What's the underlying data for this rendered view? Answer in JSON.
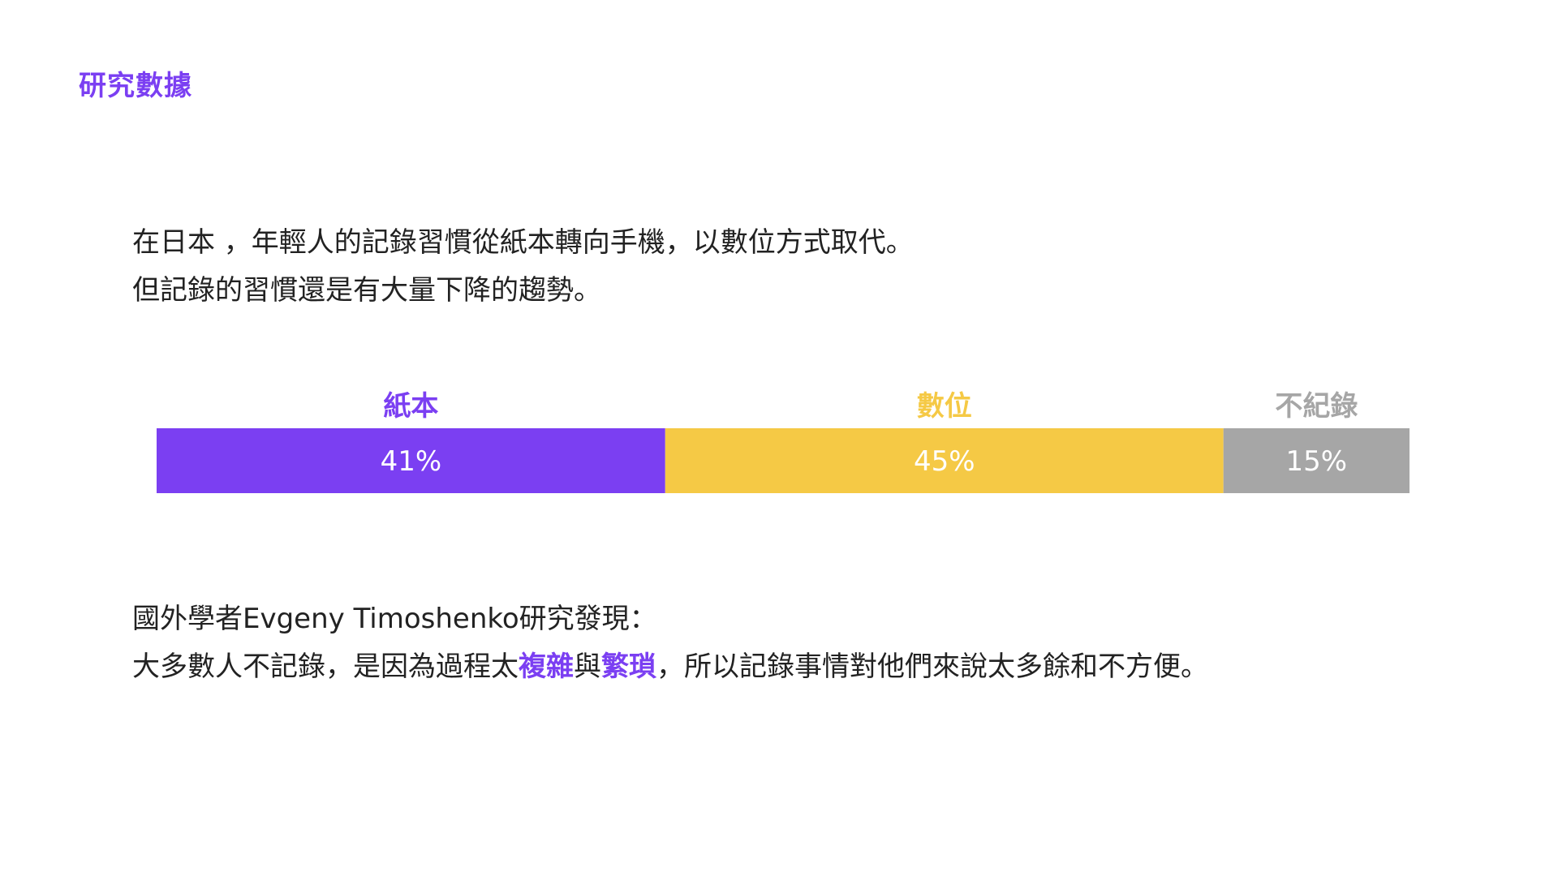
{
  "section_tag": "研究數據",
  "intro": {
    "line1": "在日本 ，年輕人的記錄習慣從紙本轉向手機，以數位方式取代。",
    "line2": "但記錄的習慣還是有大量下降的趨勢。"
  },
  "chart_data": {
    "type": "bar",
    "orientation": "horizontal-stacked",
    "categories": [
      "紙本",
      "數位",
      "不紀錄"
    ],
    "values": [
      41,
      45,
      15
    ],
    "value_labels": [
      "41%",
      "45%",
      "15%"
    ],
    "colors": [
      "#7b3ff2",
      "#f5c945",
      "#a6a6a6"
    ],
    "label_colors": [
      "#7b3ff2",
      "#f5c945",
      "#a6a6a6"
    ],
    "title": "",
    "xlabel": "",
    "ylabel": ""
  },
  "findings": {
    "line1": "國外學者Evgeny Timoshenko研究發現：",
    "line2_before": "大多數人不記錄，是因為過程太",
    "line2_hl1": "複雜",
    "line2_mid": "與",
    "line2_hl2": "繁瑣",
    "line2_after": "，所以記錄事情對他們來說太多餘和不方便。"
  }
}
